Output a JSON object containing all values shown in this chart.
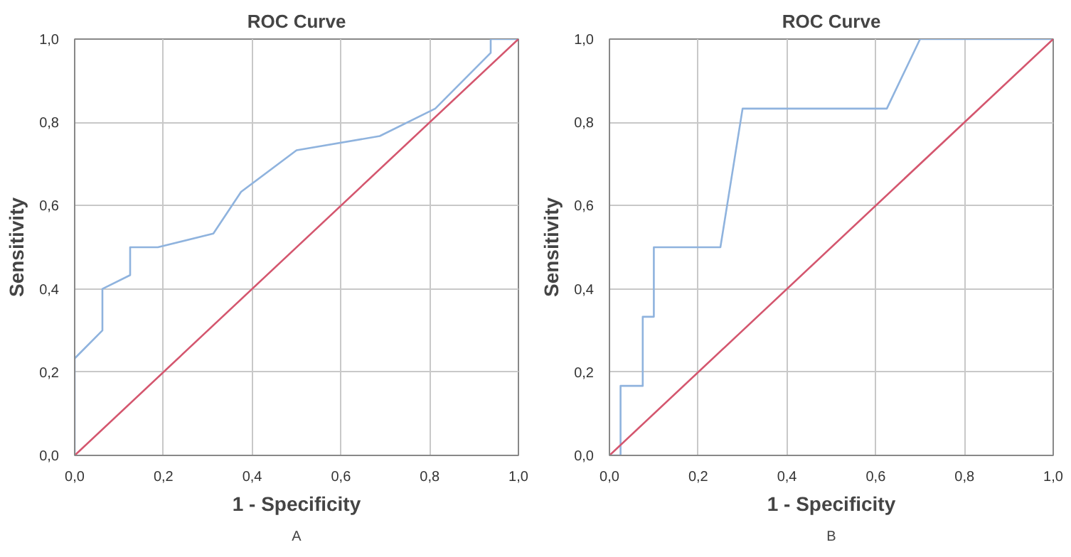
{
  "chart_data": [
    {
      "type": "line",
      "title": "ROC Curve",
      "xlabel": "1 - Specificity",
      "ylabel": "Sensitivity",
      "annotations": [
        "A"
      ],
      "series": [
        {
          "color": "#8fb3de",
          "x": [
            0,
            0,
            0.0625,
            0.0625,
            0.125,
            0.125,
            0.1875,
            0.3125,
            0.375,
            0.5,
            0.6875,
            0.8125,
            0.9375,
            0.9375,
            1
          ],
          "values": [
            0,
            0.233,
            0.3,
            0.4,
            0.433,
            0.5,
            0.5,
            0.533,
            0.633,
            0.733,
            0.767,
            0.833,
            0.967,
            1,
            1
          ]
        },
        {
          "color": "#d4566e",
          "x": [
            0,
            1
          ],
          "values": [
            0,
            1
          ]
        }
      ],
      "xlim": [
        0,
        1
      ],
      "ylim": [
        0,
        1
      ],
      "xticks": [
        {
          "value": 0,
          "label": "0,0"
        },
        {
          "value": 0.2,
          "label": "0,2"
        },
        {
          "value": 0.4,
          "label": "0,4"
        },
        {
          "value": 0.6,
          "label": "0,6"
        },
        {
          "value": 0.8,
          "label": "0,8"
        },
        {
          "value": 1,
          "label": "1,0"
        }
      ],
      "yticks": [
        {
          "value": 0,
          "label": "0,0"
        },
        {
          "value": 0.2,
          "label": "0,2"
        },
        {
          "value": 0.4,
          "label": "0,4"
        },
        {
          "value": 0.6,
          "label": "0,6"
        },
        {
          "value": 0.8,
          "label": "0,8"
        },
        {
          "value": 1,
          "label": "1,0"
        }
      ],
      "grid": true
    },
    {
      "type": "line",
      "title": "ROC Curve",
      "xlabel": "1 - Specificity",
      "ylabel": "Sensitivity",
      "annotations": [
        "B"
      ],
      "series": [
        {
          "color": "#8fb3de",
          "x": [
            0,
            0.025,
            0.025,
            0.075,
            0.075,
            0.1,
            0.1,
            0.25,
            0.3,
            0.625,
            0.7,
            1
          ],
          "values": [
            0,
            0,
            0.167,
            0.167,
            0.333,
            0.333,
            0.5,
            0.5,
            0.833,
            0.833,
            1,
            1
          ]
        },
        {
          "color": "#d4566e",
          "x": [
            0,
            1
          ],
          "values": [
            0,
            1
          ]
        }
      ],
      "xlim": [
        0,
        1
      ],
      "ylim": [
        0,
        1
      ],
      "xticks": [
        {
          "value": 0,
          "label": "0,0"
        },
        {
          "value": 0.2,
          "label": "0,2"
        },
        {
          "value": 0.4,
          "label": "0,4"
        },
        {
          "value": 0.6,
          "label": "0,6"
        },
        {
          "value": 0.8,
          "label": "0,8"
        },
        {
          "value": 1,
          "label": "1,0"
        }
      ],
      "yticks": [
        {
          "value": 0,
          "label": "0,0"
        },
        {
          "value": 0.2,
          "label": "0,2"
        },
        {
          "value": 0.4,
          "label": "0,4"
        },
        {
          "value": 0.6,
          "label": "0,6"
        },
        {
          "value": 0.8,
          "label": "0,8"
        },
        {
          "value": 1,
          "label": "1,0"
        }
      ],
      "grid": true
    }
  ]
}
